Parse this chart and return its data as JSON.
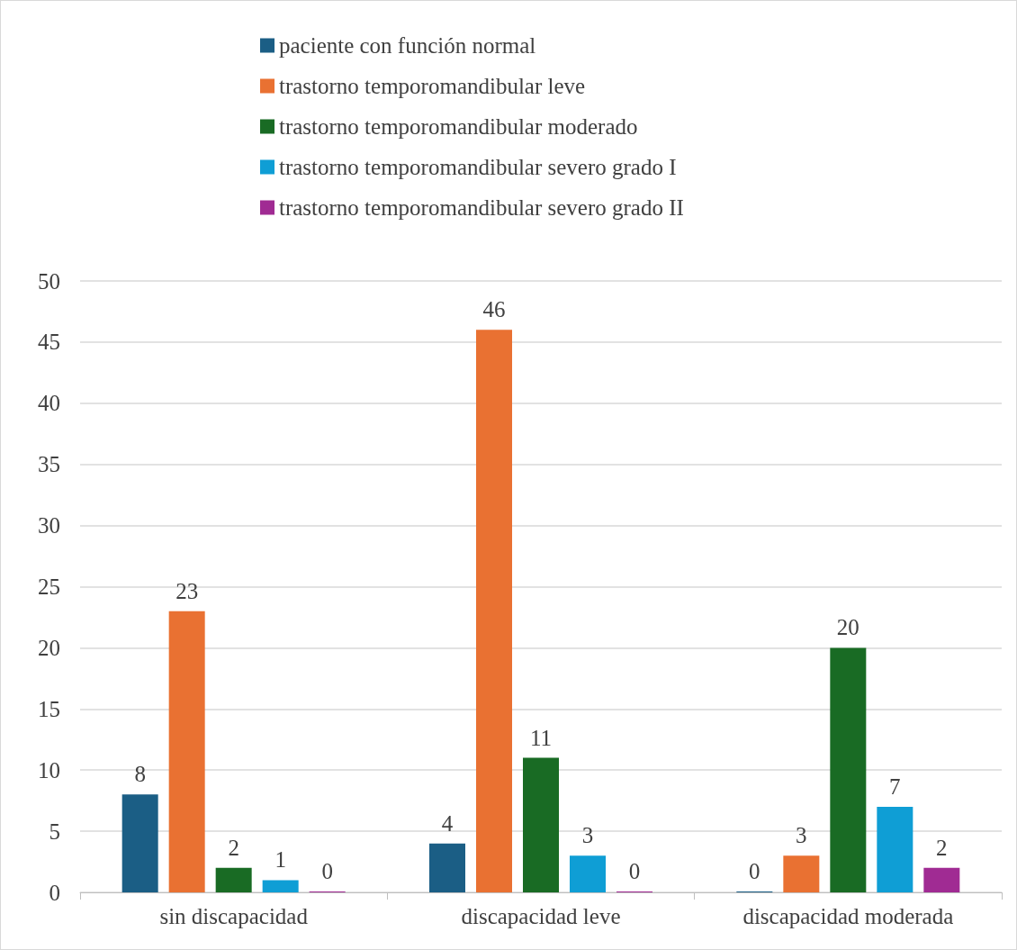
{
  "chart_data": {
    "type": "bar",
    "categories": [
      "sin discapacidad",
      "discapacidad leve",
      "discapacidad moderada"
    ],
    "series": [
      {
        "name": "paciente con función normal",
        "color": "#1b5e85",
        "values": [
          8,
          4,
          0
        ]
      },
      {
        "name": "trastorno temporomandibular leve",
        "color": "#e97132",
        "values": [
          23,
          46,
          3
        ]
      },
      {
        "name": "trastorno temporomandibular moderado",
        "color": "#196b24",
        "values": [
          2,
          11,
          20
        ]
      },
      {
        "name": "trastorno temporomandibular severo grado I",
        "color": "#0f9ed5",
        "values": [
          1,
          3,
          7
        ]
      },
      {
        "name": "trastorno temporomandibular severo grado II",
        "color": "#a02b93",
        "values": [
          0,
          0,
          2
        ]
      }
    ],
    "ylim": [
      0,
      50
    ],
    "yticks": [
      0,
      5,
      10,
      15,
      20,
      25,
      30,
      35,
      40,
      45,
      50
    ],
    "grid": "y",
    "legend": "top",
    "data_labels": true
  }
}
